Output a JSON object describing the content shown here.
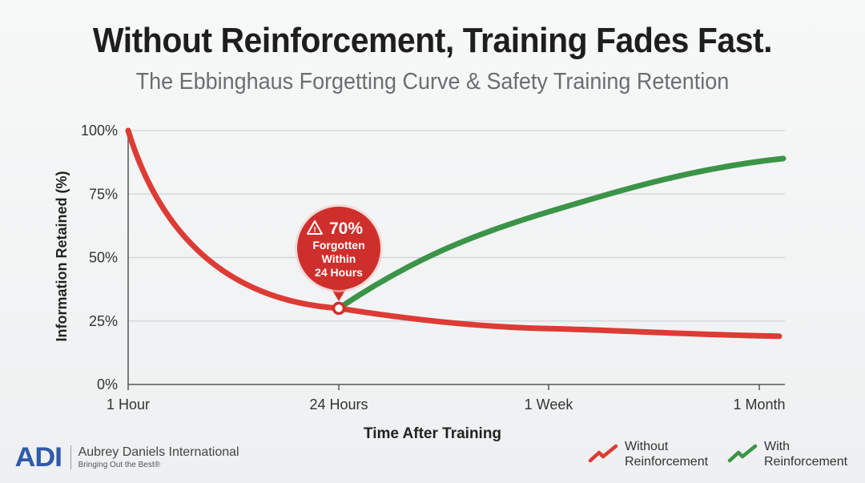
{
  "title": "Without Reinforcement, Training Fades Fast.",
  "subtitle": "The Ebbinghaus Forgetting Curve & Safety Training Retention",
  "colors": {
    "without": "#dd3b35",
    "with": "#3b9447",
    "grid": "#cfd3d6",
    "callout": "#cf2f2c",
    "brand": "#2f5aa8"
  },
  "chart_data": {
    "type": "line",
    "xlabel": "Time After Training",
    "ylabel": "Information Retained (%)",
    "x_ticks": [
      "1 Hour",
      "24 Hours",
      "1 Week",
      "1 Month"
    ],
    "y_ticks": [
      "100%",
      "75%",
      "50%",
      "25%",
      "0%"
    ],
    "ylim": [
      0,
      100
    ],
    "grid": true,
    "legend_position": "bottom-right",
    "series": [
      {
        "name": "Without Reinforcement",
        "color": "#dd3b35",
        "x": [
          "1 Hour",
          "24 Hours",
          "1 Week",
          "1 Month"
        ],
        "y": [
          100,
          30,
          22,
          19
        ]
      },
      {
        "name": "With Reinforcement",
        "color": "#3b9447",
        "x": [
          "24 Hours",
          "1 Week",
          "1 Month"
        ],
        "y": [
          30,
          68,
          89
        ]
      }
    ],
    "annotation": {
      "at_x": "24 Hours",
      "at_y": 30,
      "value": "70%",
      "lines": [
        "Forgotten",
        "Within",
        "24 Hours"
      ]
    }
  },
  "legend": {
    "without_lines": [
      "Without",
      "Reinforcement"
    ],
    "with_lines": [
      "With",
      "Reinforcement"
    ]
  },
  "brand": {
    "mark": "ADI",
    "name": "Aubrey Daniels International",
    "tagline": "Bringing Out the Best®"
  }
}
